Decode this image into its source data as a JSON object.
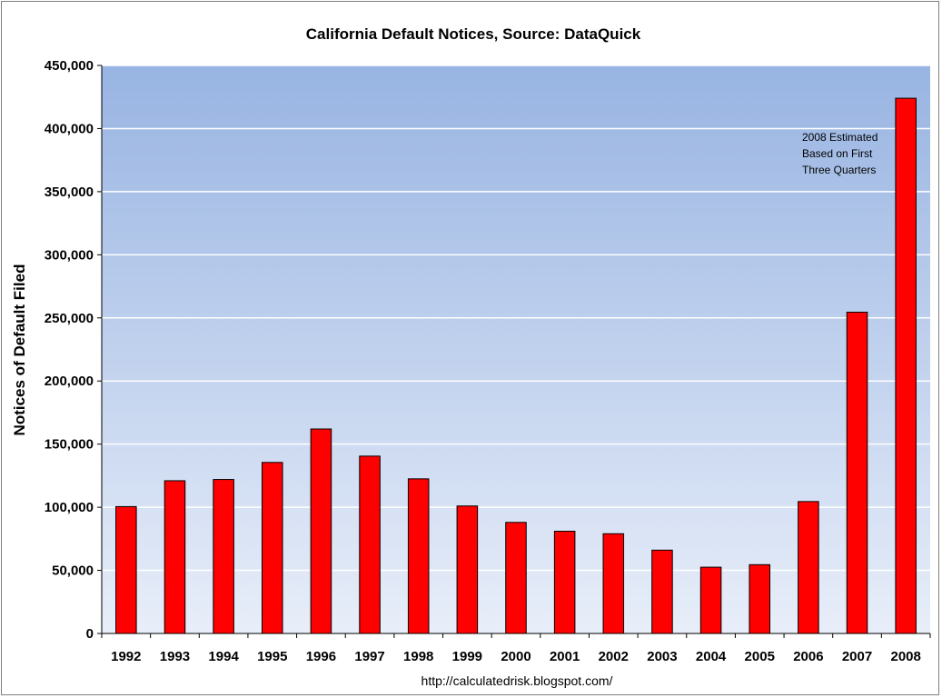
{
  "chart_data": {
    "type": "bar",
    "title": "California Default Notices, Source: DataQuick",
    "xlabel": "",
    "ylabel": "Notices of Default Filed",
    "ylim": [
      0,
      450000
    ],
    "yticks": [
      0,
      50000,
      100000,
      150000,
      200000,
      250000,
      300000,
      350000,
      400000,
      450000
    ],
    "ytick_labels": [
      "0",
      "50,000",
      "100,000",
      "150,000",
      "200,000",
      "250,000",
      "300,000",
      "350,000",
      "400,000",
      "450,000"
    ],
    "categories": [
      "1992",
      "1993",
      "1994",
      "1995",
      "1996",
      "1997",
      "1998",
      "1999",
      "2000",
      "2001",
      "2002",
      "2003",
      "2004",
      "2005",
      "2006",
      "2007",
      "2008"
    ],
    "values": [
      100500,
      121000,
      122000,
      135500,
      162000,
      140500,
      122500,
      101000,
      88000,
      81000,
      79000,
      66000,
      52500,
      54500,
      104500,
      254500,
      424000
    ],
    "annotation": [
      "2008 Estimated",
      "Based on First",
      "Three Quarters"
    ],
    "source": "http://calculatedrisk.blogspot.com/",
    "grid": true,
    "legend": "none",
    "colors": {
      "bar_fill": "#ff0000",
      "bar_stroke": "#000000",
      "plot_bg_top": "#98b4e2",
      "plot_bg_bottom": "#e8eef9",
      "grid": "#ffffff"
    }
  }
}
